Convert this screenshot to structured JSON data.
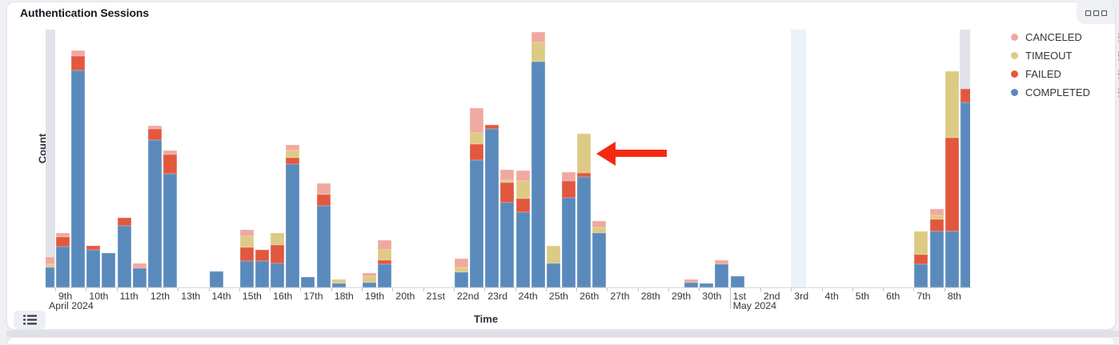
{
  "panel": {
    "title": "Authentication Sessions"
  },
  "toolbar": {
    "panel_options_icon": "panel-options-squares-icon",
    "legend_toggle_icon": "legend-list-icon"
  },
  "legend": {
    "position": "top-right",
    "items": [
      {
        "label": "CANCELED",
        "color": "#f0a9a0"
      },
      {
        "label": "TIMEOUT",
        "color": "#ddca85"
      },
      {
        "label": "FAILED",
        "color": "#e2583e"
      },
      {
        "label": "COMPLETED",
        "color": "#5a8abc"
      }
    ]
  },
  "chart_data": {
    "type": "bar",
    "stacked": true,
    "title": "Authentication Sessions",
    "xlabel": "Time",
    "ylabel": "Count",
    "grid": false,
    "legend_position": "top-right",
    "y_tick_labels": [],
    "ylim": [
      0,
      325
    ],
    "values_estimated": true,
    "slot_unit": "half-day",
    "x_tick_labels": [
      "9th",
      "10th",
      "11th",
      "12th",
      "13th",
      "14th",
      "15th",
      "16th",
      "17th",
      "18th",
      "19th",
      "20th",
      "21st",
      "22nd",
      "23rd",
      "24th",
      "25th",
      "26th",
      "27th",
      "28th",
      "29th",
      "30th",
      "1st",
      "2nd",
      "3rd",
      "4th",
      "5th",
      "6th",
      "7th",
      "8th"
    ],
    "month_labels": [
      {
        "text": "April 2024",
        "day": 1
      },
      {
        "text": "May 2024",
        "day": 23
      }
    ],
    "categories": [
      "Apr 8 PM",
      "Apr 9 AM",
      "Apr 9 PM",
      "Apr 10 AM",
      "Apr 10 PM",
      "Apr 11 AM",
      "Apr 11 PM",
      "Apr 12 AM",
      "Apr 12 PM",
      "Apr 14 AM",
      "Apr 15 AM",
      "Apr 15 PM",
      "Apr 16 AM",
      "Apr 16 PM",
      "Apr 17 AM",
      "Apr 17 PM",
      "Apr 18 AM",
      "Apr 19 AM",
      "Apr 19 PM",
      "Apr 22 AM",
      "Apr 22 PM",
      "Apr 23 AM",
      "Apr 23 PM",
      "Apr 24 AM",
      "Apr 24 PM",
      "Apr 25 AM",
      "Apr 25 PM",
      "Apr 26 AM",
      "Apr 26 PM",
      "Apr 29 PM",
      "Apr 30 AM",
      "Apr 30 PM",
      "May 1 AM",
      "May 7 AM",
      "May 7 PM",
      "May 8 AM",
      "May 8 PM"
    ],
    "slots": [
      [
        0,
        1
      ],
      [
        1,
        0
      ],
      [
        1,
        1
      ],
      [
        2,
        0
      ],
      [
        2,
        1
      ],
      [
        3,
        0
      ],
      [
        3,
        1
      ],
      [
        4,
        0
      ],
      [
        4,
        1
      ],
      [
        6,
        0
      ],
      [
        7,
        0
      ],
      [
        7,
        1
      ],
      [
        8,
        0
      ],
      [
        8,
        1
      ],
      [
        9,
        0
      ],
      [
        9,
        1
      ],
      [
        10,
        0
      ],
      [
        11,
        0
      ],
      [
        11,
        1
      ],
      [
        14,
        0
      ],
      [
        14,
        1
      ],
      [
        15,
        0
      ],
      [
        15,
        1
      ],
      [
        16,
        0
      ],
      [
        16,
        1
      ],
      [
        17,
        0
      ],
      [
        17,
        1
      ],
      [
        18,
        0
      ],
      [
        18,
        1
      ],
      [
        21,
        1
      ],
      [
        22,
        0
      ],
      [
        22,
        1
      ],
      [
        23,
        0
      ],
      [
        29,
        0
      ],
      [
        29,
        1
      ],
      [
        30,
        0
      ],
      [
        30,
        1
      ]
    ],
    "series": [
      {
        "name": "COMPLETED",
        "color": "#5a8abc",
        "values": [
          25,
          51,
          274,
          47,
          43,
          78,
          24,
          186,
          143,
          20,
          33,
          33,
          30,
          155,
          13,
          103,
          5,
          6,
          29,
          19,
          161,
          200,
          107,
          95,
          285,
          30,
          113,
          139,
          69,
          6,
          5,
          29,
          14,
          29,
          71,
          71,
          233
        ]
      },
      {
        "name": "FAILED",
        "color": "#e2583e",
        "values": [
          0,
          13,
          18,
          5,
          0,
          10,
          0,
          14,
          25,
          0,
          17,
          14,
          24,
          9,
          0,
          14,
          0,
          0,
          5,
          0,
          20,
          5,
          25,
          17,
          0,
          0,
          21,
          5,
          0,
          0,
          0,
          0,
          0,
          12,
          15,
          118,
          17
        ]
      },
      {
        "name": "TIMEOUT",
        "color": "#ddca85",
        "values": [
          4,
          0,
          0,
          0,
          0,
          0,
          0,
          0,
          0,
          0,
          15,
          0,
          15,
          9,
          0,
          0,
          5,
          8,
          13,
          6,
          14,
          0,
          3,
          22,
          24,
          22,
          0,
          50,
          7,
          0,
          0,
          0,
          0,
          30,
          5,
          84,
          0
        ]
      },
      {
        "name": "CANCELED",
        "color": "#f0a9a0",
        "values": [
          9,
          5,
          7,
          0,
          0,
          0,
          6,
          4,
          5,
          0,
          8,
          0,
          0,
          7,
          0,
          14,
          0,
          4,
          13,
          11,
          31,
          0,
          13,
          13,
          13,
          0,
          11,
          0,
          8,
          4,
          0,
          5,
          0,
          0,
          8,
          0,
          0
        ]
      }
    ],
    "annotations": {
      "arrow": {
        "shape": "left-arrow",
        "color": "#f5290f",
        "target_category": "Apr 26 AM"
      },
      "bands": [
        {
          "category": "Apr 8 PM",
          "slot": [
            0,
            1
          ],
          "kind": "partial-bucket"
        },
        {
          "category": "May 3 AM",
          "slot": [
            25,
            0
          ],
          "kind": "highlight"
        },
        {
          "category": "May 8 PM",
          "slot": [
            30,
            1
          ],
          "kind": "partial-bucket"
        }
      ]
    }
  }
}
